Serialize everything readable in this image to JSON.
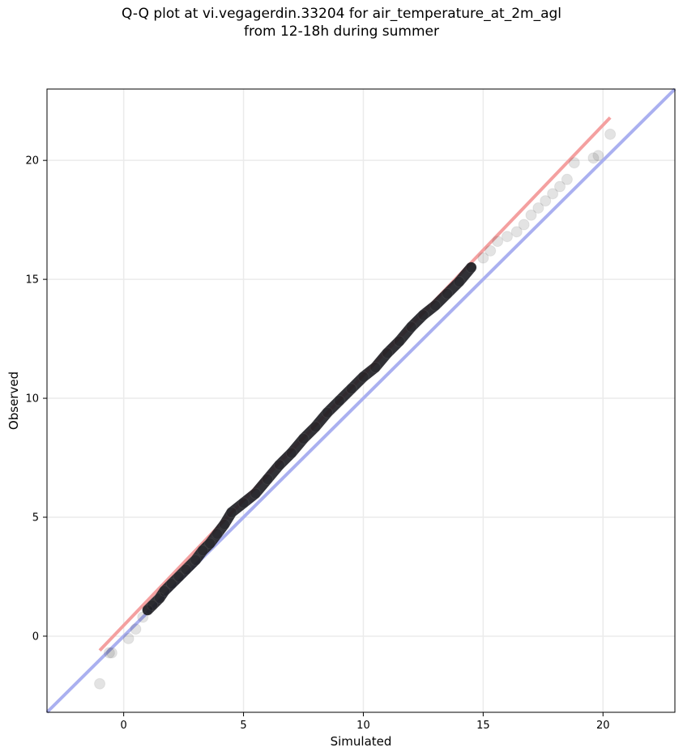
{
  "chart_data": {
    "type": "scatter",
    "title_line1": "Q-Q plot at vi.vegagerdin.33204 for air_temperature_at_2m_agl",
    "title_line2": "from 12-18h during summer",
    "xlabel": "Simulated",
    "ylabel": "Observed",
    "xlim": [
      -3.2,
      23.0
    ],
    "ylim": [
      -3.2,
      23.0
    ],
    "xticks": [
      0,
      5,
      10,
      15,
      20
    ],
    "yticks": [
      0,
      5,
      10,
      15,
      20
    ],
    "xtick_labels": [
      "0",
      "5",
      "10",
      "15",
      "20"
    ],
    "ytick_labels": [
      "0",
      "5",
      "10",
      "15",
      "20"
    ],
    "grid": true,
    "identity_line": {
      "color": "#aab0f0",
      "from": [
        -3.2,
        -3.2
      ],
      "to": [
        23.0,
        23.0
      ]
    },
    "fit_line": {
      "color": "#f4a0a0",
      "from": [
        -1.0,
        -0.6
      ],
      "to": [
        20.3,
        21.8
      ]
    },
    "point_color": "#000000",
    "points": [
      [
        -1.0,
        -2.0
      ],
      [
        -0.6,
        -0.7
      ],
      [
        -0.5,
        -0.7
      ],
      [
        0.2,
        -0.1
      ],
      [
        0.5,
        0.3
      ],
      [
        0.8,
        0.8
      ],
      [
        1.0,
        1.1
      ],
      [
        1.2,
        1.3
      ],
      [
        1.5,
        1.6
      ],
      [
        1.7,
        1.9
      ],
      [
        2.0,
        2.2
      ],
      [
        2.3,
        2.5
      ],
      [
        2.6,
        2.8
      ],
      [
        3.0,
        3.2
      ],
      [
        3.3,
        3.6
      ],
      [
        3.6,
        3.9
      ],
      [
        3.9,
        4.3
      ],
      [
        4.2,
        4.7
      ],
      [
        4.5,
        5.2
      ],
      [
        5.0,
        5.6
      ],
      [
        5.5,
        6.0
      ],
      [
        6.0,
        6.6
      ],
      [
        6.5,
        7.2
      ],
      [
        7.0,
        7.7
      ],
      [
        7.5,
        8.3
      ],
      [
        8.0,
        8.8
      ],
      [
        8.5,
        9.4
      ],
      [
        9.0,
        9.9
      ],
      [
        9.5,
        10.4
      ],
      [
        10.0,
        10.9
      ],
      [
        10.5,
        11.3
      ],
      [
        11.0,
        11.9
      ],
      [
        11.5,
        12.4
      ],
      [
        12.0,
        13.0
      ],
      [
        12.5,
        13.5
      ],
      [
        13.0,
        13.9
      ],
      [
        13.5,
        14.4
      ],
      [
        14.0,
        14.9
      ],
      [
        14.5,
        15.5
      ],
      [
        15.0,
        15.9
      ],
      [
        15.3,
        16.2
      ],
      [
        15.6,
        16.6
      ],
      [
        16.0,
        16.8
      ],
      [
        16.4,
        17.0
      ],
      [
        16.7,
        17.3
      ],
      [
        17.0,
        17.7
      ],
      [
        17.3,
        18.0
      ],
      [
        17.6,
        18.3
      ],
      [
        17.9,
        18.6
      ],
      [
        18.2,
        18.9
      ],
      [
        18.5,
        19.2
      ],
      [
        18.8,
        19.9
      ],
      [
        19.6,
        20.1
      ],
      [
        19.8,
        20.2
      ],
      [
        20.3,
        21.1
      ]
    ]
  }
}
